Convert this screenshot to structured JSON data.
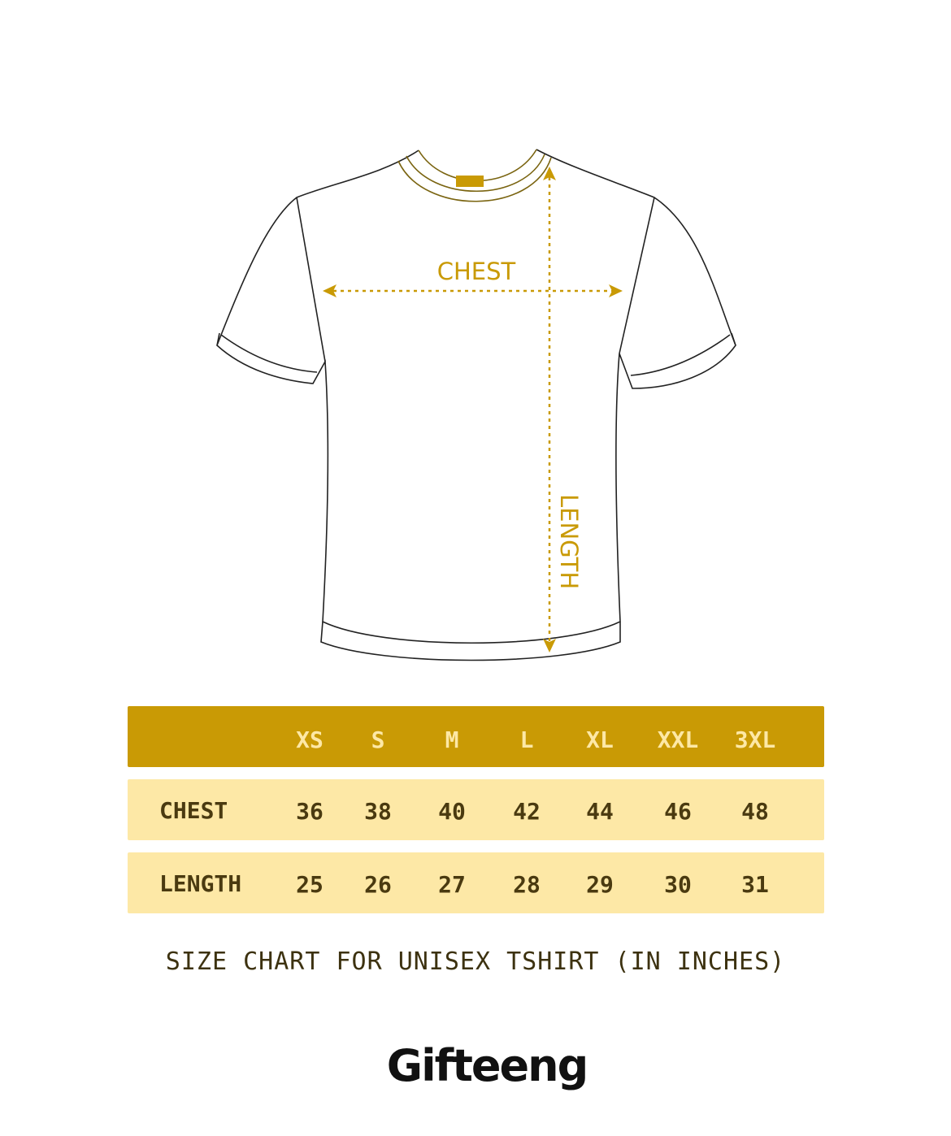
{
  "diagram": {
    "chest_label": "CHEST",
    "length_label": "LENGTH"
  },
  "table": {
    "sizes": [
      "XS",
      "S",
      "M",
      "L",
      "XL",
      "XXL",
      "3XL"
    ],
    "rows": [
      {
        "label": "CHEST",
        "values": [
          "36",
          "38",
          "40",
          "42",
          "44",
          "46",
          "48"
        ]
      },
      {
        "label": "LENGTH",
        "values": [
          "25",
          "26",
          "27",
          "28",
          "29",
          "30",
          "31"
        ]
      }
    ]
  },
  "caption": "SIZE CHART FOR UNISEX TSHIRT (IN INCHES)",
  "brand": "Gifteeng",
  "colors": {
    "accent": "#c99a05",
    "row_bg": "#fde8a6",
    "text": "#4a3a10"
  }
}
